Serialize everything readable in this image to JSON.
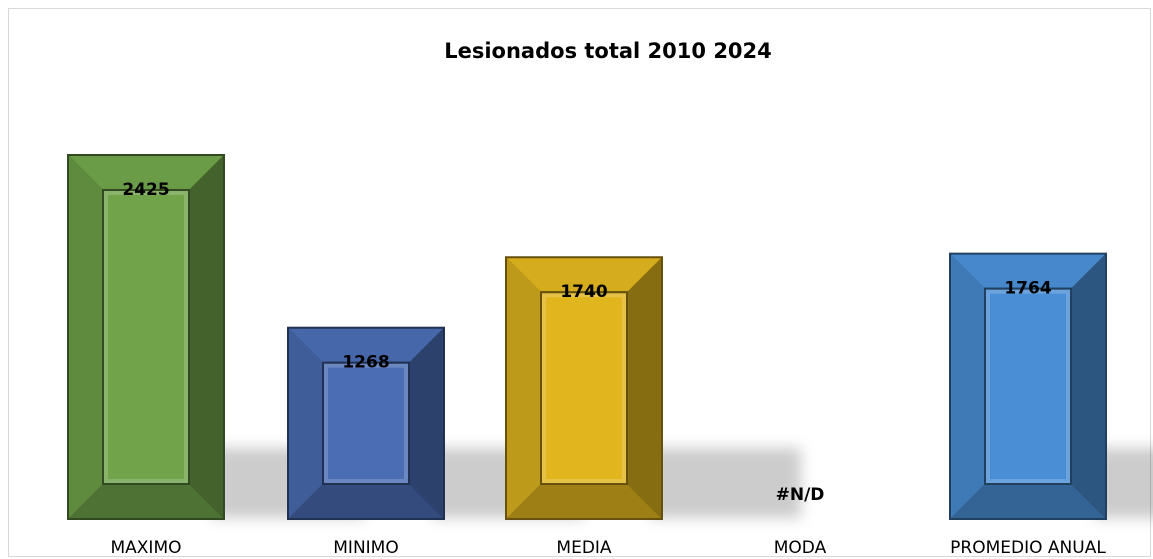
{
  "chart_data": {
    "type": "bar",
    "title": "Lesionados total 2010 2024",
    "xlabel": "",
    "ylabel": "",
    "categories": [
      "MAXIMO",
      "MINIMO",
      "MEDIA",
      "MODA",
      "PROMEDIO ANUAL"
    ],
    "values": [
      2425,
      1268,
      1740,
      null,
      1764
    ],
    "value_labels": [
      "2425",
      "1268",
      "1740",
      "#N/D",
      "1764"
    ],
    "colors": [
      "#70A34A",
      "#4A6DB3",
      "#E0B51E",
      "#000000",
      "#4A8FD6"
    ],
    "ylim": [
      0,
      2800
    ],
    "grid": false,
    "legend": "none"
  }
}
